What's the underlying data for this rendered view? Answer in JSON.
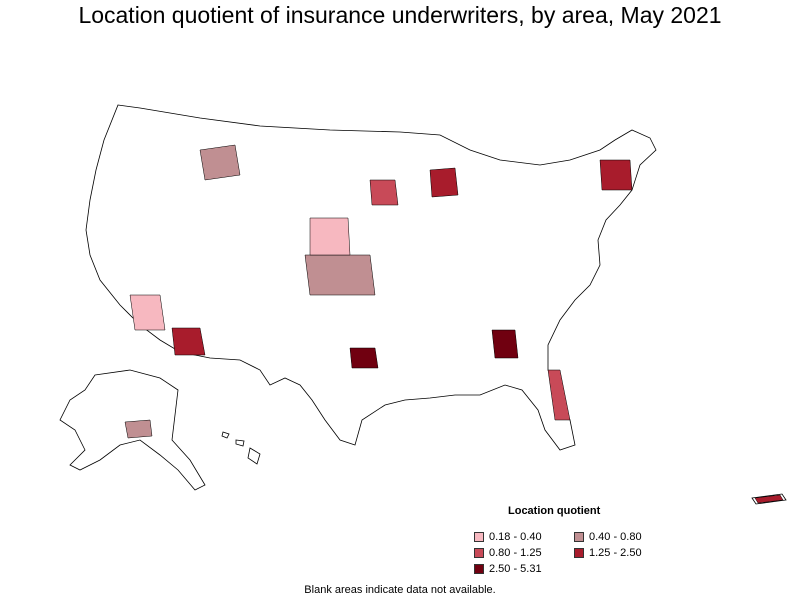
{
  "title": "Location quotient of insurance underwriters, by area, May 2021",
  "legend": {
    "title": "Location quotient",
    "items": [
      {
        "label": "0.18 - 0.40",
        "color": "#f7b8c0"
      },
      {
        "label": "0.40 - 0.80",
        "color": "#c08f92"
      },
      {
        "label": "0.80 - 1.25",
        "color": "#c84a58"
      },
      {
        "label": "1.25 - 2.50",
        "color": "#a81c2c"
      },
      {
        "label": "2.50 - 5.31",
        "color": "#700010"
      }
    ]
  },
  "note": "Blank areas indicate data not available."
}
